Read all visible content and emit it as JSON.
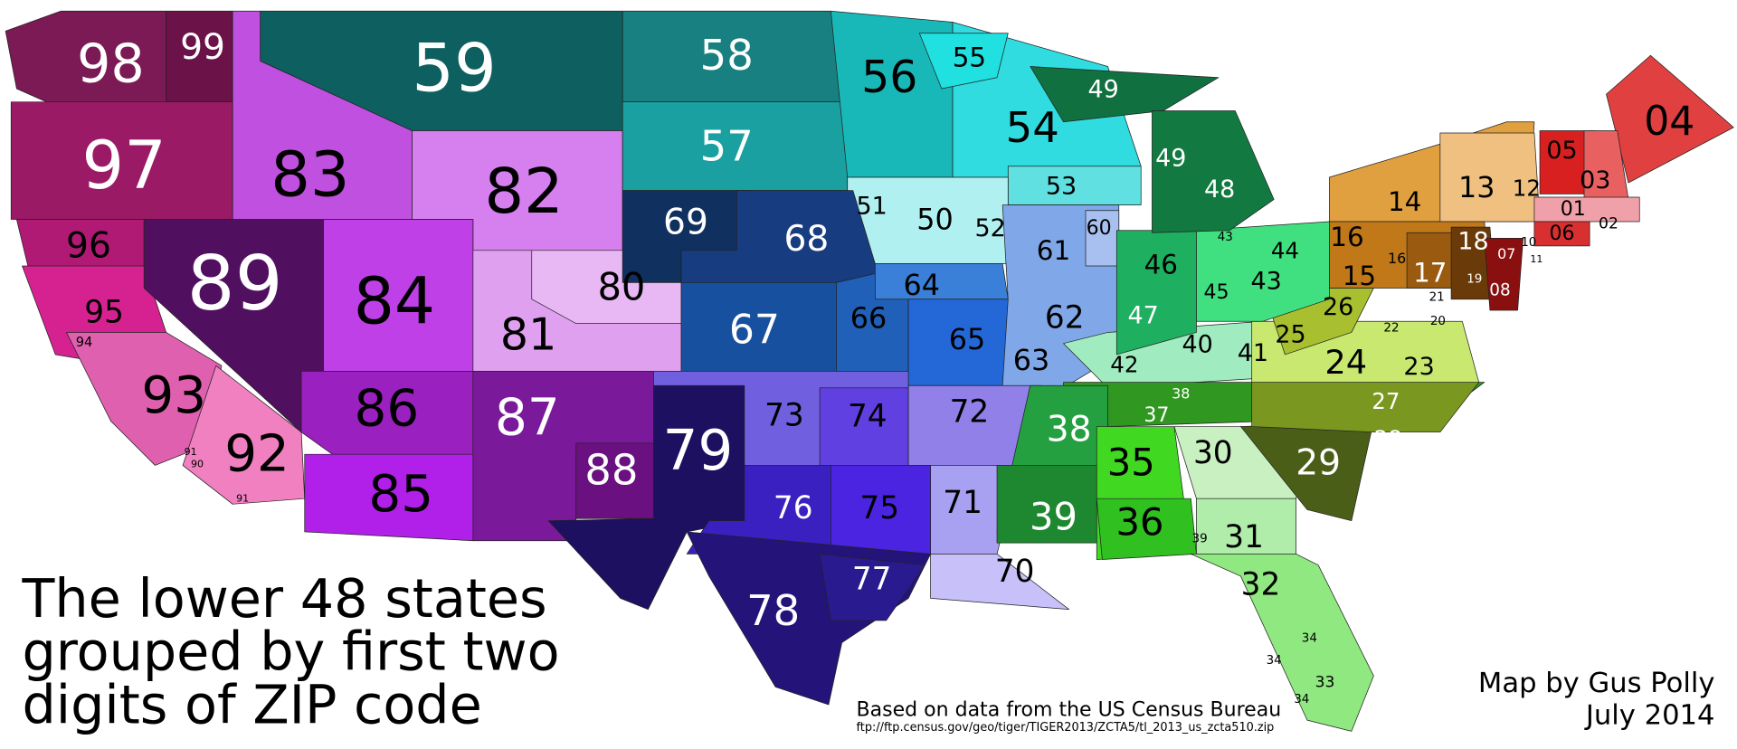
{
  "title": [
    "The lower 48 states",
    "grouped by first two",
    "digits of ZIP code"
  ],
  "source": "Based on data from the US Census Bureau",
  "source_url": "ftp://ftp.census.gov/geo/tiger/TIGER2013/ZCTA5/tl_2013_us_zcta510.zip",
  "author": "Map by Gus Polly",
  "date": "July 2014",
  "regions": [
    {
      "label": "98",
      "color": "#7b1a55"
    },
    {
      "label": "99",
      "color": "#6b1248"
    },
    {
      "label": "97",
      "color": "#9a1a65"
    },
    {
      "label": "96",
      "color": "#b01a75"
    },
    {
      "label": "95",
      "color": "#d62290"
    },
    {
      "label": "94"
    },
    {
      "label": "93",
      "color": "#e060b0"
    },
    {
      "label": "92",
      "color": "#f080c0"
    },
    {
      "label": "91"
    },
    {
      "label": "90"
    },
    {
      "label": "91"
    },
    {
      "label": "89",
      "color": "#50105f"
    },
    {
      "label": "83",
      "color": "#c050e0"
    },
    {
      "label": "59",
      "color": "#0e6060"
    },
    {
      "label": "82",
      "color": "#d580ee"
    },
    {
      "label": "84",
      "color": "#c040e8"
    },
    {
      "label": "81",
      "color": "#e0a0f0"
    },
    {
      "label": "80",
      "color": "#e8b8f5"
    },
    {
      "label": "86",
      "color": "#9a20c0"
    },
    {
      "label": "85",
      "color": "#b020e8"
    },
    {
      "label": "87",
      "color": "#7a1a9a"
    },
    {
      "label": "88",
      "color": "#6a1080"
    },
    {
      "label": "79",
      "color": "#1e1060"
    },
    {
      "label": "58",
      "color": "#188080"
    },
    {
      "label": "57",
      "color": "#1aa0a0"
    },
    {
      "label": "56",
      "color": "#18b8b8"
    },
    {
      "label": "54",
      "color": "#30dce0"
    },
    {
      "label": "55",
      "color": "#20e0e0"
    },
    {
      "label": "49",
      "color": "#107040"
    },
    {
      "label": "53",
      "color": "#60e0e0"
    },
    {
      "label": "50",
      "color": "#b0f0f0"
    },
    {
      "label": "51"
    },
    {
      "label": "52"
    },
    {
      "label": "69",
      "color": "#10305f"
    },
    {
      "label": "68",
      "color": "#183c80"
    },
    {
      "label": "67",
      "color": "#1850a0"
    },
    {
      "label": "66",
      "color": "#2060b8"
    },
    {
      "label": "64",
      "color": "#3a80d8"
    },
    {
      "label": "65",
      "color": "#2468d8"
    },
    {
      "label": "61",
      "color": "#80a8e8"
    },
    {
      "label": "62"
    },
    {
      "label": "63"
    },
    {
      "label": "60",
      "color": "#a8c0f0"
    },
    {
      "label": "73",
      "color": "#7060e0"
    },
    {
      "label": "74",
      "color": "#6040e0"
    },
    {
      "label": "72",
      "color": "#9080e8"
    },
    {
      "label": "71",
      "color": "#a8a0f0"
    },
    {
      "label": "70",
      "color": "#c8c0f8"
    },
    {
      "label": "76",
      "color": "#3a20c0"
    },
    {
      "label": "75",
      "color": "#4a24e0"
    },
    {
      "label": "78",
      "color": "#24147a"
    },
    {
      "label": "77",
      "color": "#2a1a90"
    },
    {
      "label": "40",
      "color": "#a0ecc0"
    },
    {
      "label": "42"
    },
    {
      "label": "41"
    },
    {
      "label": "37",
      "color": "#309820"
    },
    {
      "label": "38"
    },
    {
      "label": "38",
      "color": "#24a040"
    },
    {
      "label": "39",
      "color": "#1e8830"
    },
    {
      "label": "35",
      "color": "#40d820"
    },
    {
      "label": "36",
      "color": "#30c020"
    },
    {
      "label": "30",
      "color": "#c8f0c0"
    },
    {
      "label": "31",
      "color": "#b0ecaa"
    },
    {
      "label": "39"
    },
    {
      "label": "32",
      "color": "#90e880"
    },
    {
      "label": "34"
    },
    {
      "label": "34"
    },
    {
      "label": "33"
    },
    {
      "label": "34"
    },
    {
      "label": "29",
      "color": "#4a5e18"
    },
    {
      "label": "27",
      "color": "#7a9820"
    },
    {
      "label": "28"
    },
    {
      "label": "24",
      "color": "#c8e870"
    },
    {
      "label": "23"
    },
    {
      "label": "22"
    },
    {
      "label": "21"
    },
    {
      "label": "20"
    },
    {
      "label": "26",
      "color": "#a8c030"
    },
    {
      "label": "25"
    },
    {
      "label": "47",
      "color": "#1eb060"
    },
    {
      "label": "46"
    },
    {
      "label": "44",
      "color": "#40e080"
    },
    {
      "label": "43"
    },
    {
      "label": "43"
    },
    {
      "label": "45"
    },
    {
      "label": "48",
      "color": "#127a40"
    },
    {
      "label": "49"
    },
    {
      "label": "14",
      "color": "#e0a040"
    },
    {
      "label": "13",
      "color": "#f0c080"
    },
    {
      "label": "12"
    },
    {
      "label": "16",
      "color": "#c07818"
    },
    {
      "label": "15"
    },
    {
      "label": "17",
      "color": "#9a5a10"
    },
    {
      "label": "16"
    },
    {
      "label": "18",
      "color": "#6a3a08"
    },
    {
      "label": "19"
    },
    {
      "label": "07",
      "color": "#8a1010"
    },
    {
      "label": "08"
    },
    {
      "label": "10"
    },
    {
      "label": "11"
    },
    {
      "label": "04",
      "color": "#e04040"
    },
    {
      "label": "05",
      "color": "#d82020"
    },
    {
      "label": "03",
      "color": "#e86060"
    },
    {
      "label": "01",
      "color": "#f0a0a8"
    },
    {
      "label": "02"
    },
    {
      "label": "06",
      "color": "#d83030"
    }
  ]
}
